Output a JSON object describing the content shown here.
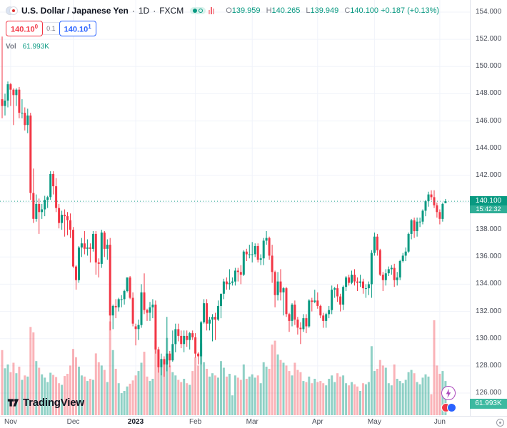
{
  "header": {
    "symbol_title": "U.S. Dollar / Japanese Yen",
    "separator": "·",
    "timeframe": "1D",
    "exchange": "FXCM",
    "ohlc": {
      "o_label": "O",
      "o": "139.959",
      "h_label": "H",
      "h": "140.265",
      "l_label": "L",
      "l": "139.949",
      "c_label": "C",
      "c": "140.100",
      "change": "+0.187",
      "change_pct": "(+0.13%)"
    },
    "vol_label": "Vol",
    "vol_value": "61.993K"
  },
  "trade": {
    "sell_main": "140.10",
    "sell_sup": "0",
    "spread": "0.1",
    "buy_main": "140.10",
    "buy_sup": "1"
  },
  "badges": {
    "price": "140.100",
    "countdown": "15:42:32",
    "volume": "61.993K"
  },
  "logo": {
    "text": "TradingView"
  },
  "price_scale": {
    "labels": [
      "154.000",
      "152.000",
      "150.000",
      "148.000",
      "146.000",
      "144.000",
      "142.000",
      "140.000",
      "138.000",
      "136.000",
      "134.000",
      "132.000",
      "130.000",
      "128.000",
      "126.000"
    ]
  },
  "colors": {
    "up": "#089981",
    "down": "#f23645",
    "vol_up": "rgba(8,153,129,0.45)",
    "vol_down": "rgba(242,54,69,0.38)",
    "grid": "#f0f3fa",
    "axis_border": "#e0e3eb",
    "blue": "#2962ff",
    "text_dark": "#131722",
    "text_gray": "#787b86",
    "badge_green": "#089981",
    "countdown_green": "#2fae97",
    "vol_badge_green": "#3cb9a0"
  },
  "chart_data": {
    "type": "candlestick",
    "title": "U.S. Dollar / Japanese Yen · 1D · FXCM",
    "symbol": "USD/JPY",
    "timeframe": "1D",
    "exchange": "FXCM",
    "grid": true,
    "legend_position": "top-left",
    "last_price": 140.1,
    "last_volume_label": "61.993K",
    "y_axis": {
      "min": 125.4,
      "max": 154.9,
      "tick_step": 2,
      "ticks": [
        154,
        152,
        150,
        148,
        146,
        144,
        142,
        140,
        138,
        136,
        134,
        132,
        130,
        128,
        126
      ]
    },
    "x_axis_months": [
      {
        "label": "Nov",
        "index": 3
      },
      {
        "label": "Dec",
        "index": 25
      },
      {
        "label": "2023",
        "index": 47,
        "bold": true
      },
      {
        "label": "Feb",
        "index": 68
      },
      {
        "label": "Mar",
        "index": 88
      },
      {
        "label": "Apr",
        "index": 111
      },
      {
        "label": "May",
        "index": 131
      },
      {
        "label": "Jun",
        "index": 154
      }
    ],
    "candle_fields": [
      "open",
      "high",
      "low",
      "close",
      "volume_k"
    ],
    "candles": [
      [
        147.6,
        152.2,
        146.2,
        147.1,
        118
      ],
      [
        147.1,
        148.0,
        146.4,
        147.5,
        85
      ],
      [
        147.5,
        148.9,
        147.0,
        148.7,
        92
      ],
      [
        148.7,
        148.8,
        147.1,
        148.3,
        78
      ],
      [
        148.3,
        148.4,
        145.7,
        147.9,
        95
      ],
      [
        147.9,
        148.4,
        147.1,
        148.3,
        76
      ],
      [
        148.3,
        148.5,
        146.2,
        146.6,
        88
      ],
      [
        146.6,
        147.6,
        146.2,
        146.6,
        64
      ],
      [
        146.6,
        147.0,
        145.3,
        145.7,
        72
      ],
      [
        145.7,
        146.9,
        145.1,
        146.4,
        70
      ],
      [
        146.4,
        146.6,
        140.2,
        140.7,
        160
      ],
      [
        140.7,
        142.5,
        138.5,
        138.8,
        150
      ],
      [
        138.8,
        140.6,
        138.6,
        139.9,
        98
      ],
      [
        139.9,
        140.3,
        137.7,
        139.3,
        86
      ],
      [
        139.3,
        139.9,
        138.8,
        139.5,
        74
      ],
      [
        139.5,
        140.5,
        139.0,
        140.2,
        68
      ],
      [
        140.2,
        140.5,
        139.6,
        140.4,
        60
      ],
      [
        140.4,
        142.3,
        140.2,
        142.1,
        77
      ],
      [
        142.1,
        142.3,
        140.6,
        141.2,
        73
      ],
      [
        141.2,
        141.8,
        139.3,
        139.6,
        69
      ],
      [
        139.6,
        139.9,
        138.1,
        138.5,
        58
      ],
      [
        138.5,
        139.4,
        138.0,
        139.1,
        55
      ],
      [
        139.1,
        139.5,
        137.5,
        139.0,
        71
      ],
      [
        139.0,
        139.3,
        137.6,
        138.7,
        75
      ],
      [
        138.7,
        139.2,
        137.4,
        138.0,
        90
      ],
      [
        138.0,
        138.2,
        135.2,
        135.3,
        120
      ],
      [
        135.3,
        135.4,
        133.6,
        134.3,
        105
      ],
      [
        134.3,
        136.8,
        134.1,
        136.7,
        88
      ],
      [
        136.7,
        137.4,
        136.0,
        137.0,
        72
      ],
      [
        137.0,
        137.9,
        136.2,
        136.6,
        70
      ],
      [
        136.6,
        137.3,
        136.1,
        136.7,
        62
      ],
      [
        136.7,
        137.0,
        135.6,
        136.6,
        66
      ],
      [
        136.6,
        137.9,
        136.4,
        137.7,
        64
      ],
      [
        137.7,
        137.9,
        134.7,
        135.6,
        112
      ],
      [
        135.6,
        135.9,
        134.5,
        135.5,
        96
      ],
      [
        135.5,
        138.0,
        135.2,
        137.8,
        90
      ],
      [
        137.8,
        137.9,
        136.0,
        136.6,
        82
      ],
      [
        136.6,
        137.3,
        135.8,
        136.9,
        60
      ],
      [
        136.9,
        137.4,
        130.6,
        131.7,
        170
      ],
      [
        131.7,
        132.5,
        130.7,
        132.4,
        118
      ],
      [
        132.4,
        132.9,
        131.5,
        132.3,
        84
      ],
      [
        132.3,
        133.0,
        132.0,
        132.9,
        58
      ],
      [
        132.9,
        133.2,
        132.3,
        132.9,
        40
      ],
      [
        132.9,
        133.6,
        132.5,
        133.5,
        44
      ],
      [
        133.5,
        134.5,
        133.4,
        134.5,
        52
      ],
      [
        134.5,
        134.6,
        132.9,
        133.0,
        57
      ],
      [
        133.0,
        133.4,
        130.9,
        131.1,
        63
      ],
      [
        130.9,
        131.1,
        129.5,
        130.7,
        72
      ],
      [
        130.7,
        131.4,
        129.9,
        131.0,
        80
      ],
      [
        131.0,
        134.0,
        130.8,
        133.4,
        95
      ],
      [
        133.4,
        134.8,
        131.8,
        132.1,
        115
      ],
      [
        132.1,
        132.2,
        131.3,
        131.9,
        70
      ],
      [
        131.9,
        132.7,
        131.3,
        132.3,
        62
      ],
      [
        132.3,
        132.9,
        131.5,
        132.5,
        66
      ],
      [
        132.5,
        132.8,
        128.9,
        129.2,
        135
      ],
      [
        129.2,
        129.4,
        127.5,
        127.9,
        120
      ],
      [
        127.9,
        128.9,
        127.3,
        128.5,
        88
      ],
      [
        128.5,
        128.7,
        127.2,
        128.1,
        92
      ],
      [
        128.1,
        131.6,
        127.6,
        128.9,
        140
      ],
      [
        128.9,
        129.1,
        127.9,
        128.4,
        90
      ],
      [
        128.4,
        130.6,
        128.3,
        129.6,
        78
      ],
      [
        129.6,
        131.1,
        129.0,
        130.7,
        72
      ],
      [
        130.7,
        131.1,
        129.8,
        130.2,
        64
      ],
      [
        130.2,
        130.6,
        129.3,
        129.6,
        60
      ],
      [
        129.6,
        130.6,
        129.0,
        130.2,
        66
      ],
      [
        130.2,
        130.6,
        129.4,
        129.9,
        58
      ],
      [
        129.9,
        130.5,
        129.2,
        130.4,
        55
      ],
      [
        130.4,
        130.6,
        129.9,
        130.1,
        80
      ],
      [
        130.1,
        130.4,
        128.6,
        128.9,
        105
      ],
      [
        128.9,
        129.0,
        128.1,
        128.7,
        90
      ],
      [
        128.7,
        131.3,
        128.1,
        131.2,
        130
      ],
      [
        131.2,
        132.9,
        131.1,
        132.6,
        96
      ],
      [
        132.6,
        132.9,
        130.6,
        131.1,
        84
      ],
      [
        131.1,
        131.6,
        130.6,
        131.4,
        70
      ],
      [
        131.4,
        131.8,
        129.8,
        131.6,
        76
      ],
      [
        131.6,
        131.9,
        129.9,
        131.4,
        72
      ],
      [
        131.4,
        132.8,
        131.3,
        132.4,
        68
      ],
      [
        132.4,
        133.3,
        131.5,
        133.3,
        98
      ],
      [
        133.3,
        134.4,
        132.9,
        134.2,
        86
      ],
      [
        134.2,
        134.5,
        133.6,
        134.0,
        70
      ],
      [
        134.0,
        135.1,
        133.6,
        134.1,
        75
      ],
      [
        134.1,
        134.5,
        133.9,
        134.2,
        36
      ],
      [
        134.2,
        135.2,
        133.9,
        135.0,
        72
      ],
      [
        135.0,
        135.2,
        134.2,
        134.9,
        68
      ],
      [
        134.9,
        135.4,
        134.0,
        134.7,
        64
      ],
      [
        134.7,
        136.5,
        134.6,
        136.4,
        92
      ],
      [
        136.4,
        136.6,
        135.7,
        136.2,
        66
      ],
      [
        136.2,
        136.9,
        135.9,
        136.2,
        70
      ],
      [
        136.2,
        137.1,
        135.6,
        136.2,
        74
      ],
      [
        136.2,
        137.0,
        136.0,
        136.8,
        68
      ],
      [
        136.8,
        137.0,
        135.6,
        135.8,
        72
      ],
      [
        135.8,
        136.2,
        135.4,
        135.9,
        58
      ],
      [
        135.9,
        137.4,
        135.4,
        137.2,
        96
      ],
      [
        137.2,
        137.9,
        136.9,
        137.4,
        88
      ],
      [
        137.4,
        137.5,
        135.8,
        136.1,
        84
      ],
      [
        136.1,
        136.9,
        134.1,
        134.9,
        128
      ],
      [
        134.9,
        135.0,
        132.3,
        133.2,
        135
      ],
      [
        133.2,
        134.9,
        132.8,
        134.2,
        110
      ],
      [
        134.2,
        135.1,
        132.8,
        133.4,
        100
      ],
      [
        133.4,
        133.8,
        131.7,
        133.7,
        95
      ],
      [
        133.7,
        133.8,
        131.6,
        131.8,
        90
      ],
      [
        131.8,
        131.9,
        130.5,
        131.3,
        80
      ],
      [
        131.3,
        132.6,
        130.9,
        132.5,
        72
      ],
      [
        132.5,
        132.8,
        131.0,
        131.4,
        95
      ],
      [
        131.4,
        131.6,
        130.3,
        130.8,
        82
      ],
      [
        130.8,
        131.2,
        129.6,
        130.7,
        78
      ],
      [
        130.7,
        131.8,
        130.5,
        131.5,
        62
      ],
      [
        131.5,
        131.8,
        130.4,
        130.9,
        60
      ],
      [
        130.9,
        132.9,
        130.8,
        132.8,
        70
      ],
      [
        132.8,
        133.0,
        132.0,
        132.7,
        58
      ],
      [
        132.7,
        133.6,
        132.6,
        132.8,
        66
      ],
      [
        132.8,
        133.4,
        132.2,
        132.4,
        60
      ],
      [
        132.4,
        132.5,
        131.5,
        131.7,
        62
      ],
      [
        131.7,
        131.9,
        130.8,
        131.3,
        58
      ],
      [
        131.3,
        131.9,
        130.8,
        131.8,
        54
      ],
      [
        131.8,
        132.4,
        131.5,
        132.1,
        66
      ],
      [
        132.1,
        133.9,
        131.8,
        133.6,
        72
      ],
      [
        133.6,
        133.8,
        133.0,
        133.7,
        60
      ],
      [
        133.7,
        134.0,
        132.7,
        133.1,
        76
      ],
      [
        133.1,
        133.3,
        132.0,
        132.5,
        70
      ],
      [
        132.5,
        133.9,
        132.1,
        133.8,
        72
      ],
      [
        133.8,
        134.6,
        133.5,
        134.5,
        58
      ],
      [
        134.5,
        134.7,
        133.9,
        134.1,
        54
      ],
      [
        134.1,
        135.0,
        134.0,
        134.7,
        60
      ],
      [
        134.7,
        135.1,
        133.9,
        134.2,
        56
      ],
      [
        134.2,
        134.5,
        133.5,
        134.1,
        52
      ],
      [
        134.1,
        134.7,
        133.8,
        134.2,
        44
      ],
      [
        134.2,
        134.4,
        133.3,
        133.7,
        58
      ],
      [
        133.7,
        134.0,
        133.0,
        133.7,
        56
      ],
      [
        133.7,
        134.2,
        133.2,
        134.0,
        60
      ],
      [
        134.0,
        136.5,
        133.0,
        136.3,
        125
      ],
      [
        136.3,
        137.8,
        136.1,
        137.5,
        80
      ],
      [
        137.5,
        137.7,
        136.1,
        136.5,
        84
      ],
      [
        136.5,
        136.6,
        134.6,
        134.7,
        100
      ],
      [
        134.7,
        134.9,
        133.5,
        134.3,
        90
      ],
      [
        134.3,
        135.1,
        133.9,
        134.8,
        86
      ],
      [
        134.8,
        135.3,
        134.6,
        135.1,
        58
      ],
      [
        135.1,
        135.4,
        134.7,
        135.2,
        54
      ],
      [
        135.2,
        135.5,
        133.8,
        134.3,
        92
      ],
      [
        134.3,
        134.9,
        133.9,
        134.5,
        66
      ],
      [
        134.5,
        135.8,
        134.3,
        135.7,
        62
      ],
      [
        135.7,
        136.3,
        135.6,
        136.1,
        58
      ],
      [
        136.1,
        136.7,
        135.7,
        136.4,
        64
      ],
      [
        136.4,
        137.8,
        136.3,
        137.7,
        78
      ],
      [
        137.7,
        138.8,
        137.3,
        138.7,
        82
      ],
      [
        138.7,
        138.9,
        137.4,
        137.9,
        76
      ],
      [
        137.9,
        138.9,
        137.5,
        138.6,
        60
      ],
      [
        138.6,
        138.9,
        138.2,
        138.6,
        56
      ],
      [
        138.6,
        139.5,
        138.4,
        139.4,
        68
      ],
      [
        139.4,
        140.2,
        139.0,
        140.1,
        74
      ],
      [
        140.1,
        140.8,
        139.7,
        140.6,
        70
      ],
      [
        140.6,
        140.9,
        140.2,
        140.4,
        38
      ],
      [
        140.4,
        140.9,
        139.6,
        139.8,
        172
      ],
      [
        139.8,
        140.0,
        138.9,
        139.3,
        90
      ],
      [
        139.3,
        139.5,
        138.4,
        138.8,
        75
      ],
      [
        138.8,
        140.0,
        138.6,
        139.9,
        80
      ],
      [
        139.959,
        140.265,
        139.949,
        140.1,
        62
      ]
    ]
  }
}
